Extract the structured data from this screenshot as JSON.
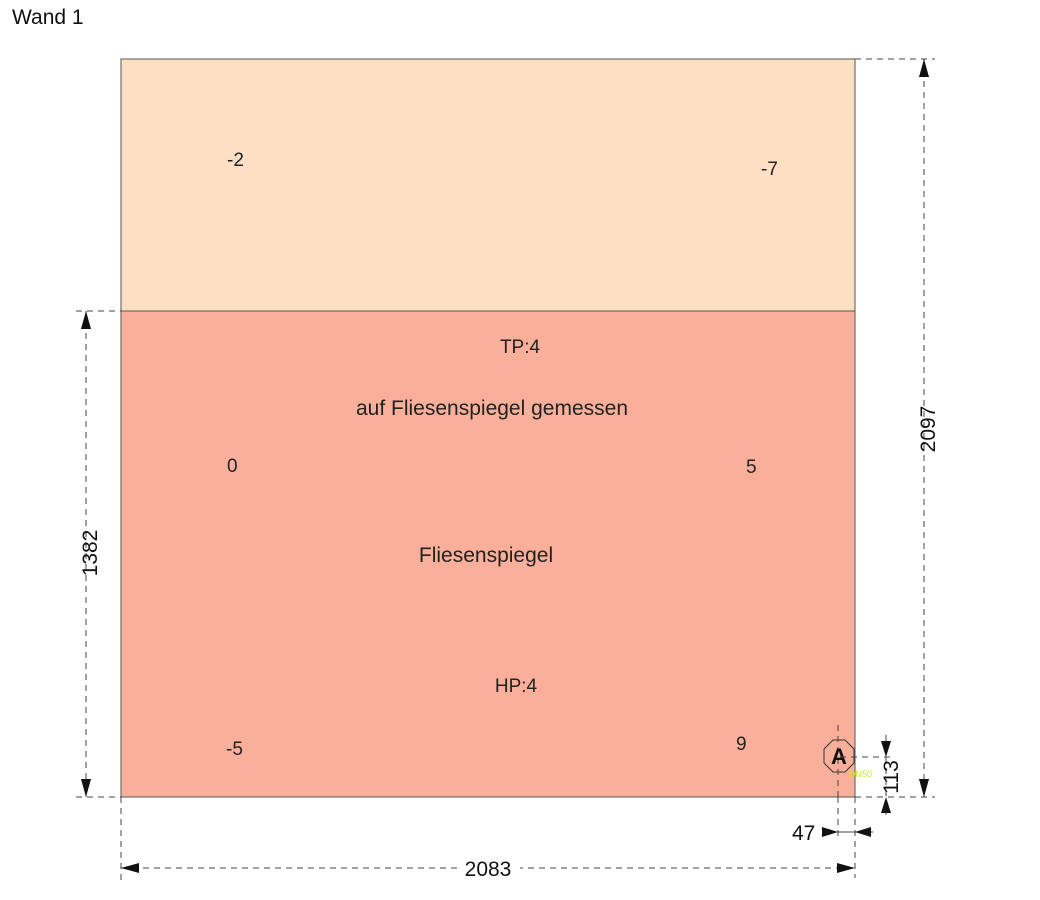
{
  "title": "Wand 1",
  "colors": {
    "upper_area": "#fddfc4",
    "tile_area": "#f9af99",
    "outline": "#555555",
    "drain_label": "#c8e830"
  },
  "upper_area": {
    "points": {
      "left_top": "-2",
      "right_top": "-7"
    }
  },
  "tile_area": {
    "label_tp": "TP:4",
    "note": "auf Fliesenspiegel gemessen",
    "name": "Fliesenspiegel",
    "label_hp": "HP:4",
    "points": {
      "left_mid": "0",
      "right_mid": "5",
      "left_bottom": "-5",
      "right_bottom": "9"
    }
  },
  "marker": {
    "letter": "A",
    "drain_label": "DN50"
  },
  "dimensions": {
    "total_height": "2097",
    "tile_height": "1382",
    "marker_height": "113",
    "marker_offset": "47",
    "total_width": "2083"
  }
}
